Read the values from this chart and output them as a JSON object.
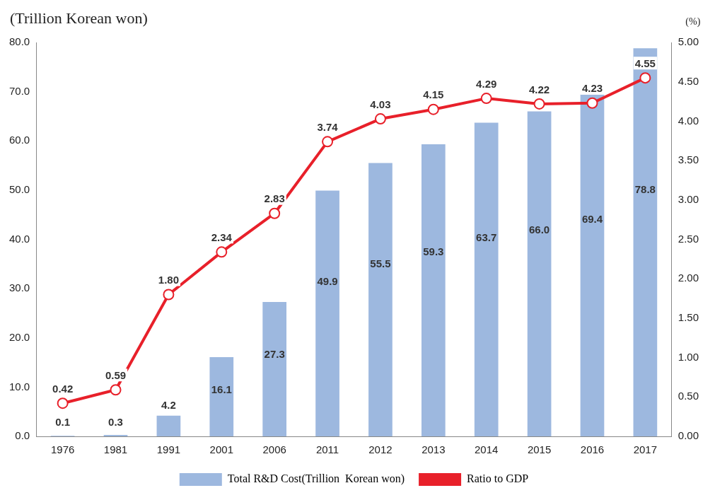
{
  "chart_data": {
    "type": "bar",
    "ylabel": "(Trillion Korean won)",
    "y2label": "(%)",
    "categories": [
      "1976",
      "1981",
      "1991",
      "2001",
      "2006",
      "2011",
      "2012",
      "2013",
      "2014",
      "2015",
      "2016",
      "2017"
    ],
    "series": [
      {
        "name": "Total R&D Cost(Trillion  Korean won)",
        "color": "#9db8df",
        "values": [
          0.1,
          0.3,
          4.2,
          16.1,
          27.3,
          49.9,
          55.5,
          59.3,
          63.7,
          66.0,
          69.4,
          78.8
        ],
        "value_labels": [
          "0.1",
          "0.3",
          "4.2",
          "16.1",
          "27.3",
          "49.9",
          "55.5",
          "59.3",
          "63.7",
          "66.0",
          "69.4",
          "78.8"
        ]
      },
      {
        "name": "Ratio to GDP",
        "type": "line",
        "axis": "y2",
        "color": "#e8202a",
        "marker": "circle",
        "values": [
          0.42,
          0.59,
          1.8,
          2.34,
          2.83,
          3.74,
          4.03,
          4.15,
          4.29,
          4.22,
          4.23,
          4.55
        ],
        "value_labels": [
          "0.42",
          "0.59",
          "1.80",
          "2.34",
          "2.83",
          "3.74",
          "4.03",
          "4.15",
          "4.29",
          "4.22",
          "4.23",
          "4.55"
        ]
      }
    ],
    "ylim": [
      0,
      80
    ],
    "yticks": [
      {
        "value": 0,
        "label": "0.0"
      },
      {
        "value": 10,
        "label": "10.0"
      },
      {
        "value": 20,
        "label": "20.0"
      },
      {
        "value": 30,
        "label": "30.0"
      },
      {
        "value": 40,
        "label": "40.0"
      },
      {
        "value": 50,
        "label": "50.0"
      },
      {
        "value": 60,
        "label": "60.0"
      },
      {
        "value": 70,
        "label": "70.0"
      },
      {
        "value": 80,
        "label": "80.0"
      }
    ],
    "y2lim": [
      0,
      5
    ],
    "y2ticks": [
      {
        "value": 0,
        "label": "0.00"
      },
      {
        "value": 0.5,
        "label": "0.50"
      },
      {
        "value": 1,
        "label": "1.00"
      },
      {
        "value": 1.5,
        "label": "1.50"
      },
      {
        "value": 2,
        "label": "2.00"
      },
      {
        "value": 2.5,
        "label": "2.50"
      },
      {
        "value": 3,
        "label": "3.00"
      },
      {
        "value": 3.5,
        "label": "3.50"
      },
      {
        "value": 4,
        "label": "4.00"
      },
      {
        "value": 4.5,
        "label": "4.50"
      },
      {
        "value": 5,
        "label": "5.00"
      }
    ],
    "grid": false,
    "legend": "bottom"
  }
}
